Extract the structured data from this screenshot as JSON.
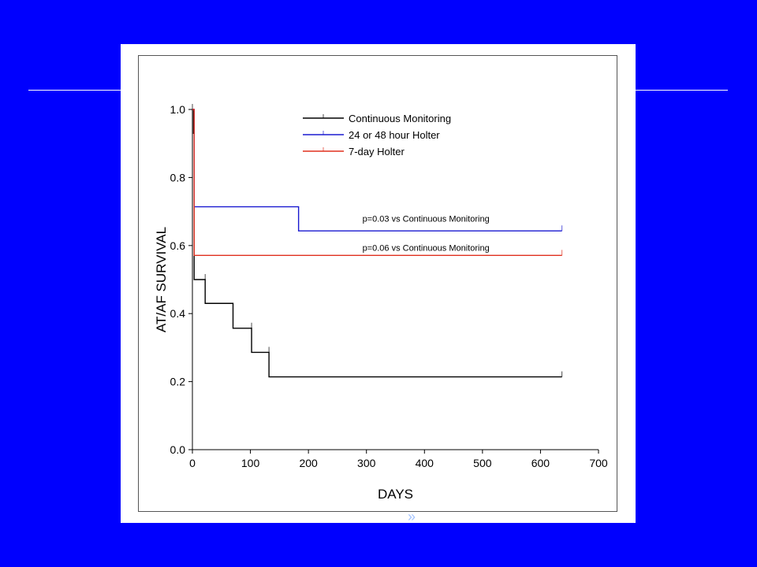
{
  "colors": {
    "slide_background": "#0000fe",
    "series_continuous": "#000000",
    "series_holter_24_48": "#1a1ad0",
    "series_holter_7day": "#e0301e"
  },
  "chart_data": {
    "type": "line",
    "step": true,
    "title": "",
    "xlabel": "DAYS",
    "ylabel": "AT/AF SURVIVAL",
    "xlim": [
      0,
      700
    ],
    "ylim": [
      0.0,
      1.0
    ],
    "x_ticks": [
      "0",
      "100",
      "200",
      "300",
      "400",
      "500",
      "600",
      "700"
    ],
    "y_ticks": [
      "0.0",
      "0.2",
      "0.4",
      "0.6",
      "0.8",
      "1.0"
    ],
    "grid": false,
    "legend_position": "top-right",
    "series": [
      {
        "name": "Continuous Monitoring",
        "color": "#000000",
        "points": [
          [
            0,
            1.0
          ],
          [
            2,
            0.93
          ],
          [
            3,
            0.5
          ],
          [
            22,
            0.43
          ],
          [
            70,
            0.357
          ],
          [
            102,
            0.286
          ],
          [
            132,
            0.214
          ],
          [
            637,
            0.214
          ]
        ],
        "censored": [
          [
            0,
            1.0
          ],
          [
            22,
            0.5
          ],
          [
            102,
            0.357
          ],
          [
            132,
            0.286
          ],
          [
            637,
            0.214
          ]
        ]
      },
      {
        "name": "24 or 48 hour Holter",
        "color": "#1a1ad0",
        "points": [
          [
            0,
            1.0
          ],
          [
            3,
            0.714
          ],
          [
            183,
            0.643
          ],
          [
            637,
            0.643
          ]
        ],
        "censored": [
          [
            637,
            0.643
          ]
        ]
      },
      {
        "name": "7-day Holter",
        "color": "#e0301e",
        "points": [
          [
            0,
            1.0
          ],
          [
            3,
            0.571
          ],
          [
            637,
            0.571
          ]
        ],
        "censored": [
          [
            637,
            0.571
          ]
        ]
      }
    ],
    "annotations": [
      {
        "text": "p=0.03 vs Continuous Monitoring",
        "x": 293,
        "y": 0.67
      },
      {
        "text": "p=0.06 vs Continuous Monitoring",
        "x": 293,
        "y": 0.585
      }
    ]
  },
  "watermark_text": "»"
}
